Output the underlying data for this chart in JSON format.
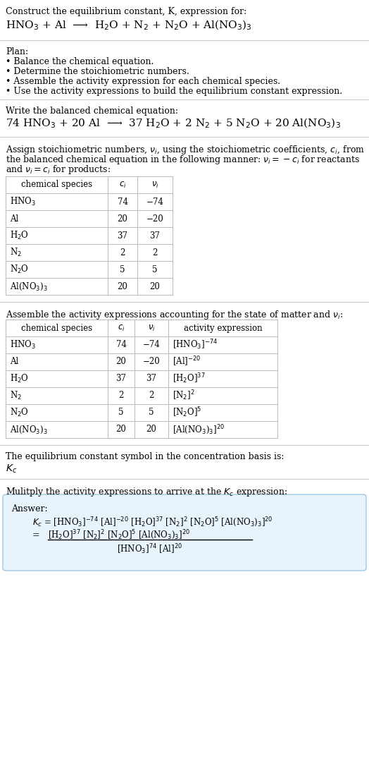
{
  "title_line1": "Construct the equilibrium constant, K, expression for:",
  "title_line2": "HNO$_3$ + Al  ⟶  H$_2$O + N$_2$ + N$_2$O + Al(NO$_3$)$_3$",
  "plan_header": "Plan:",
  "plan_items": [
    "• Balance the chemical equation.",
    "• Determine the stoichiometric numbers.",
    "• Assemble the activity expression for each chemical species.",
    "• Use the activity expressions to build the equilibrium constant expression."
  ],
  "balanced_header": "Write the balanced chemical equation:",
  "balanced_eq": "74 HNO$_3$ + 20 Al  ⟶  37 H$_2$O + 2 N$_2$ + 5 N$_2$O + 20 Al(NO$_3$)$_3$",
  "stoich_intro_lines": [
    "Assign stoichiometric numbers, $\\nu_i$, using the stoichiometric coefficients, $c_i$, from",
    "the balanced chemical equation in the following manner: $\\nu_i = -c_i$ for reactants",
    "and $\\nu_i = c_i$ for products:"
  ],
  "table1_headers": [
    "chemical species",
    "$c_i$",
    "$\\nu_i$"
  ],
  "table1_rows": [
    [
      "HNO$_3$",
      "74",
      "−74"
    ],
    [
      "Al",
      "20",
      "−20"
    ],
    [
      "H$_2$O",
      "37",
      "37"
    ],
    [
      "N$_2$",
      "2",
      "2"
    ],
    [
      "N$_2$O",
      "5",
      "5"
    ],
    [
      "Al(NO$_3$)$_3$",
      "20",
      "20"
    ]
  ],
  "activity_intro": "Assemble the activity expressions accounting for the state of matter and $\\nu_i$:",
  "table2_headers": [
    "chemical species",
    "$c_i$",
    "$\\nu_i$",
    "activity expression"
  ],
  "table2_rows": [
    [
      "HNO$_3$",
      "74",
      "−74",
      "[HNO$_3$]$^{-74}$"
    ],
    [
      "Al",
      "20",
      "−20",
      "[Al]$^{-20}$"
    ],
    [
      "H$_2$O",
      "37",
      "37",
      "[H$_2$O]$^{37}$"
    ],
    [
      "N$_2$",
      "2",
      "2",
      "[N$_2$]$^2$"
    ],
    [
      "N$_2$O",
      "5",
      "5",
      "[N$_2$O]$^5$"
    ],
    [
      "Al(NO$_3$)$_3$",
      "20",
      "20",
      "[Al(NO$_3$)$_3$]$^{20}$"
    ]
  ],
  "kc_intro": "The equilibrium constant symbol in the concentration basis is:",
  "kc_symbol": "$K_c$",
  "multiply_intro": "Mulitply the activity expressions to arrive at the $K_c$ expression:",
  "answer_label": "Answer:",
  "answer_line1": "$K_c$ = [HNO$_3$]$^{-74}$ [Al]$^{-20}$ [H$_2$O]$^{37}$ [N$_2$]$^2$ [N$_2$O]$^5$ [Al(NO$_3$)$_3$]$^{20}$",
  "answer_eq_lhs": "   = ",
  "answer_eq_numerator": "[H$_2$O]$^{37}$ [N$_2$]$^2$ [N$_2$O]$^5$ [Al(NO$_3$)$_3$]$^{20}$",
  "answer_eq_denominator": "[HNO$_3$]$^{74}$ [Al]$^{20}$",
  "bg_color": "#ffffff",
  "text_color": "#000000",
  "table_border_color": "#bbbbbb",
  "answer_box_bg": "#e8f4fb",
  "answer_box_border": "#a0c8e0",
  "font_size": 9.0,
  "small_font_size": 8.5,
  "title_font_size": 11.0
}
